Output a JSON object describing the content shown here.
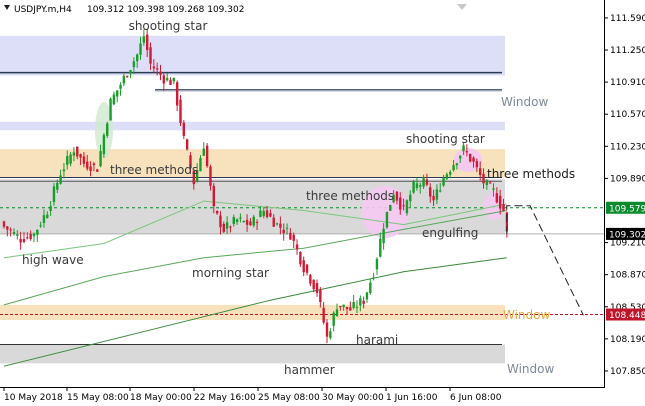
{
  "window": {
    "symbol_title": "USDJPY.m,H4",
    "ohlc": "109.312 109.398 109.268 109.302"
  },
  "chart_data": {
    "type": "candlestick",
    "symbol": "USDJPY.m",
    "timeframe": "H4",
    "ylim": [
      107.68,
      111.78
    ],
    "price_ticks": [
      "111.590",
      "111.250",
      "110.910",
      "110.570",
      "110.230",
      "109.890",
      "109.210",
      "108.870",
      "108.530",
      "108.190",
      "107.850"
    ],
    "time_ticks": [
      "10 May 2018",
      "15 May 08:00",
      "18 May 00:00",
      "22 May 16:00",
      "25 May 08:00",
      "30 May 00:00",
      "1 Jun 16:00",
      "6 Jun 08:00"
    ],
    "price_labels": [
      {
        "value": "109.579",
        "price": 109.579,
        "color": "#0b8a2e"
      },
      {
        "value": "109.302",
        "price": 109.302,
        "color": "#000000"
      },
      {
        "value": "108.448",
        "price": 108.448,
        "color": "#c0162b"
      }
    ],
    "zones": [
      {
        "label": "",
        "y_top": 111.4,
        "y_bottom": 110.98,
        "color": "#dcdff7"
      },
      {
        "label": "",
        "y_top": 110.49,
        "y_bottom": 110.4,
        "color": "#dcdff7"
      },
      {
        "label": "",
        "y_top": 110.2,
        "y_bottom": 109.9,
        "color": "#f7e2bd"
      },
      {
        "label": "",
        "y_top": 109.88,
        "y_bottom": 109.3,
        "color": "#d9d9d9"
      },
      {
        "label": "",
        "y_top": 108.55,
        "y_bottom": 108.39,
        "color": "#f7e2bd"
      },
      {
        "label": "",
        "y_top": 108.13,
        "y_bottom": 107.93,
        "color": "#d9d9d9"
      }
    ],
    "annotations": [
      {
        "text": "shooting star",
        "style": "default"
      },
      {
        "text": "three methods",
        "style": "default"
      },
      {
        "text": "high wave",
        "style": "default"
      },
      {
        "text": "morning star",
        "style": "default"
      },
      {
        "text": "three methods",
        "style": "default"
      },
      {
        "text": "shooting star",
        "style": "default"
      },
      {
        "text": "three methods",
        "style": "dark"
      },
      {
        "text": "engulfing",
        "style": "default"
      },
      {
        "text": "harami",
        "style": "default"
      },
      {
        "text": "hammer",
        "style": "default"
      },
      {
        "text": "Window",
        "style": "gray"
      },
      {
        "text": "Window",
        "style": "orange"
      },
      {
        "text": "Window",
        "style": "gray"
      }
    ],
    "anchors": [
      {
        "idx": 0,
        "close": 109.38
      },
      {
        "idx": 5,
        "close": 109.25
      },
      {
        "idx": 9,
        "close": 109.3
      },
      {
        "idx": 13,
        "close": 109.55
      },
      {
        "idx": 17,
        "close": 109.95
      },
      {
        "idx": 21,
        "close": 110.2
      },
      {
        "idx": 24,
        "close": 110.05
      },
      {
        "idx": 28,
        "close": 110.0
      },
      {
        "idx": 32,
        "close": 110.7
      },
      {
        "idx": 36,
        "close": 110.95
      },
      {
        "idx": 40,
        "close": 111.2
      },
      {
        "idx": 42,
        "close": 111.4
      },
      {
        "idx": 44,
        "close": 111.1
      },
      {
        "idx": 48,
        "close": 110.95
      },
      {
        "idx": 51,
        "close": 110.9
      },
      {
        "idx": 54,
        "close": 110.3
      },
      {
        "idx": 57,
        "close": 109.85
      },
      {
        "idx": 60,
        "close": 110.25
      },
      {
        "idx": 63,
        "close": 109.55
      },
      {
        "idx": 66,
        "close": 109.35
      },
      {
        "idx": 70,
        "close": 109.45
      },
      {
        "idx": 74,
        "close": 109.4
      },
      {
        "idx": 78,
        "close": 109.55
      },
      {
        "idx": 82,
        "close": 109.4
      },
      {
        "idx": 86,
        "close": 109.3
      },
      {
        "idx": 90,
        "close": 108.95
      },
      {
        "idx": 94,
        "close": 108.7
      },
      {
        "idx": 97,
        "close": 108.2
      },
      {
        "idx": 100,
        "close": 108.55
      },
      {
        "idx": 104,
        "close": 108.5
      },
      {
        "idx": 108,
        "close": 108.6
      },
      {
        "idx": 111,
        "close": 108.9
      },
      {
        "idx": 114,
        "close": 109.4
      },
      {
        "idx": 117,
        "close": 109.75
      },
      {
        "idx": 120,
        "close": 109.55
      },
      {
        "idx": 123,
        "close": 109.8
      },
      {
        "idx": 126,
        "close": 109.85
      },
      {
        "idx": 129,
        "close": 109.65
      },
      {
        "idx": 132,
        "close": 109.9
      },
      {
        "idx": 135,
        "close": 110.05
      },
      {
        "idx": 138,
        "close": 110.2
      },
      {
        "idx": 141,
        "close": 110.05
      },
      {
        "idx": 144,
        "close": 109.85
      },
      {
        "idx": 147,
        "close": 109.75
      },
      {
        "idx": 150,
        "close": 109.55
      },
      {
        "idx": 151,
        "close": 109.3
      }
    ],
    "moving_averages": [
      {
        "color": "#7cc77c",
        "points": [
          [
            0,
            109.05
          ],
          [
            30,
            109.2
          ],
          [
            60,
            109.65
          ],
          [
            90,
            109.55
          ],
          [
            120,
            109.4
          ],
          [
            151,
            109.62
          ]
        ]
      },
      {
        "color": "#5aa85a",
        "points": [
          [
            0,
            108.55
          ],
          [
            30,
            108.85
          ],
          [
            60,
            109.05
          ],
          [
            90,
            109.15
          ],
          [
            120,
            109.35
          ],
          [
            151,
            109.55
          ]
        ]
      },
      {
        "color": "#3b8a3b",
        "points": [
          [
            0,
            107.9
          ],
          [
            40,
            108.25
          ],
          [
            80,
            108.6
          ],
          [
            120,
            108.9
          ],
          [
            151,
            109.05
          ]
        ]
      }
    ],
    "projection": [
      [
        151,
        109.6
      ],
      [
        158,
        109.6
      ],
      [
        174,
        108.44
      ]
    ]
  }
}
